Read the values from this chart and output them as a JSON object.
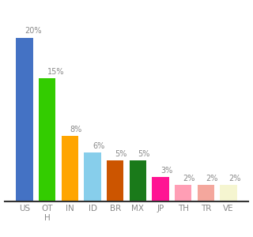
{
  "categories": [
    "US",
    "OT\nH",
    "IN",
    "ID",
    "BR",
    "MX",
    "JP",
    "TH",
    "TR",
    "VE"
  ],
  "values": [
    20,
    15,
    8,
    6,
    5,
    5,
    3,
    2,
    2,
    2
  ],
  "labels": [
    "20%",
    "15%",
    "8%",
    "6%",
    "5%",
    "5%",
    "3%",
    "2%",
    "2%",
    "2%"
  ],
  "bar_colors": [
    "#4472c4",
    "#33cc00",
    "#ffa500",
    "#87ceeb",
    "#cc5500",
    "#1a7a1a",
    "#ff1493",
    "#ff9eb5",
    "#f4a79d",
    "#f5f5d0"
  ],
  "background_color": "#ffffff",
  "ylim": [
    0,
    24
  ],
  "bar_width": 0.75,
  "label_fontsize": 7,
  "tick_fontsize": 7.5
}
